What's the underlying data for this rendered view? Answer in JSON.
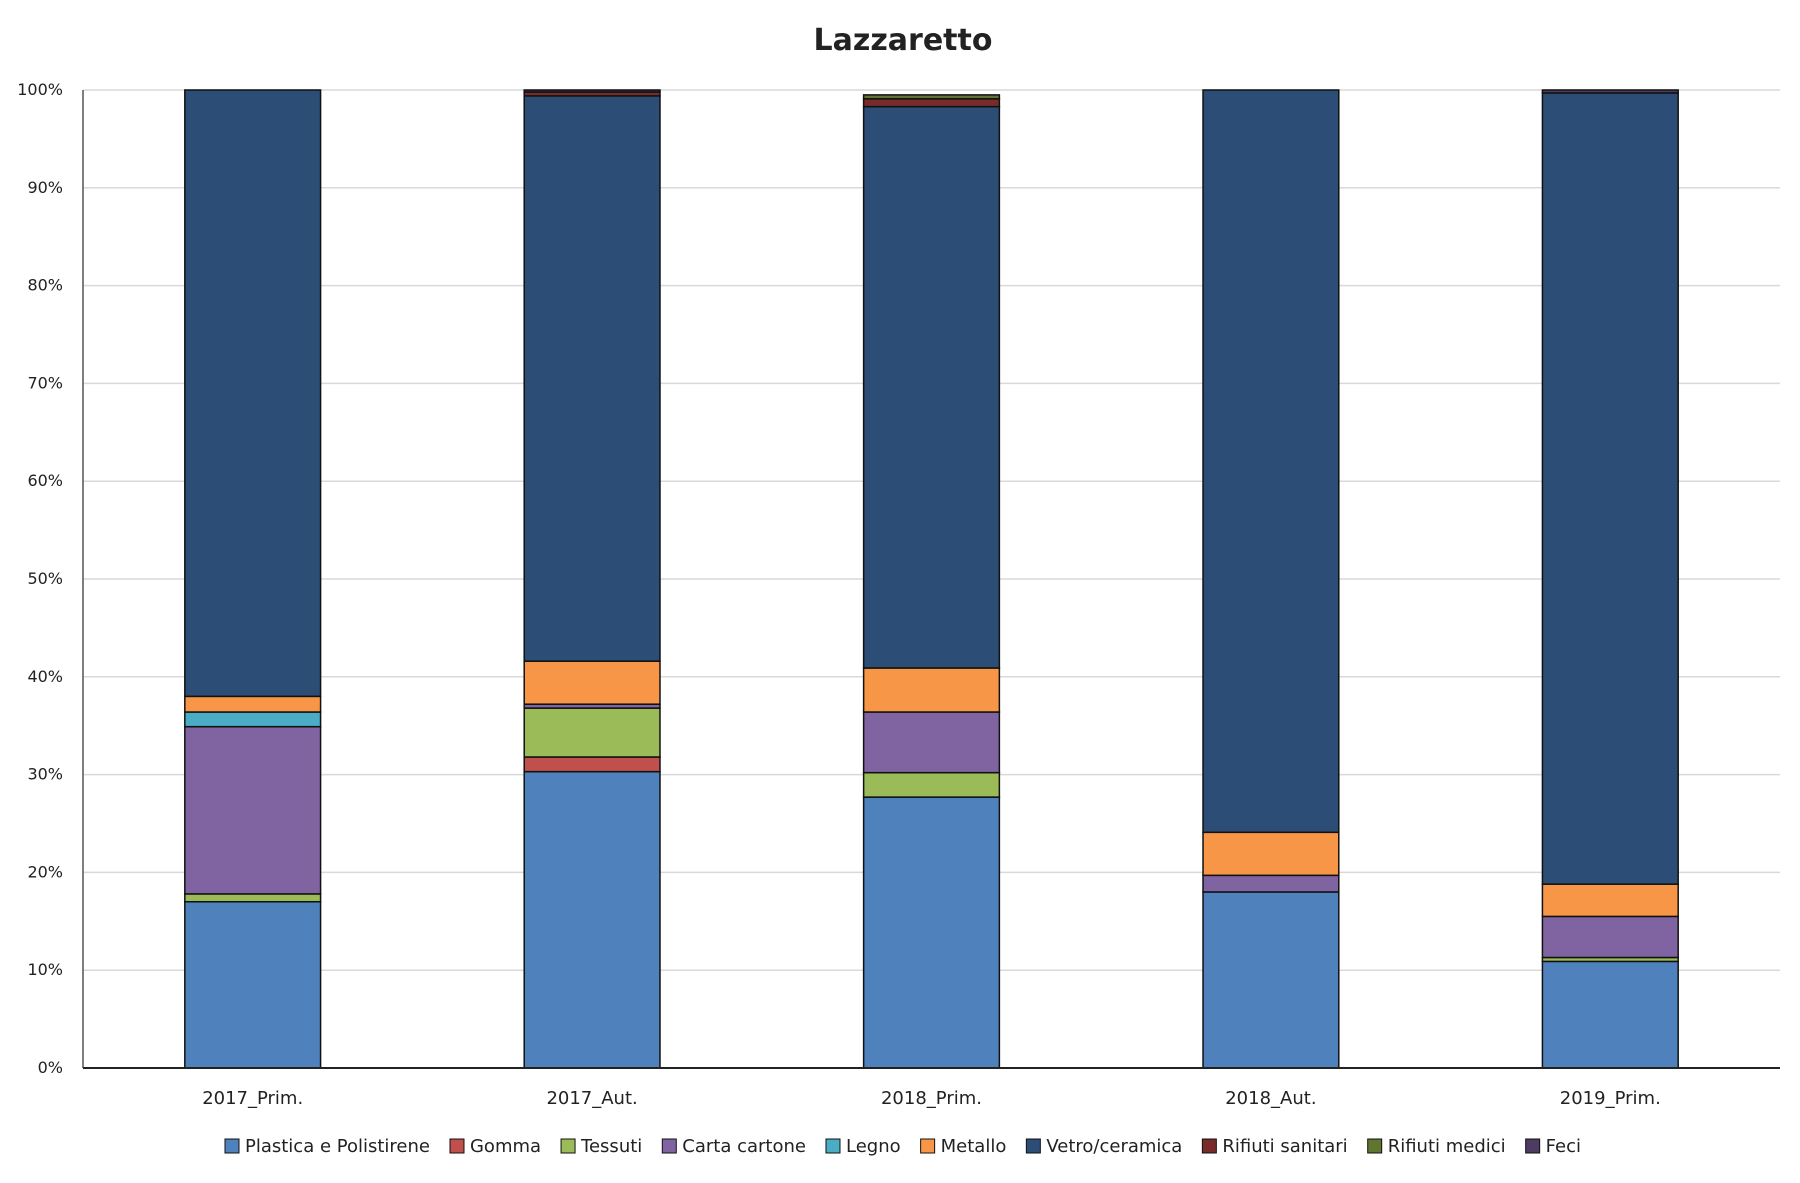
{
  "chart_data": {
    "type": "bar",
    "stacked": true,
    "normalized": true,
    "title": "Lazzaretto",
    "xlabel": "",
    "ylabel": "",
    "ylim": [
      0,
      100
    ],
    "y_ticks": [
      "0%",
      "10%",
      "20%",
      "30%",
      "40%",
      "50%",
      "60%",
      "70%",
      "80%",
      "90%",
      "100%"
    ],
    "grid": true,
    "legend_position": "bottom",
    "categories": [
      "2017_Prim.",
      "2017_Aut.",
      "2018_Prim.",
      "2018_Aut.",
      "2019_Prim."
    ],
    "series": [
      {
        "name": "Plastica e Polistirene",
        "color": "#4F81BD",
        "values": [
          17.0,
          30.3,
          27.7,
          18.0,
          10.9
        ]
      },
      {
        "name": "Gomma",
        "color": "#C0504D",
        "values": [
          0.0,
          1.5,
          0.0,
          0.0,
          0.0
        ]
      },
      {
        "name": "Tessuti",
        "color": "#9BBB59",
        "values": [
          0.8,
          5.0,
          2.5,
          0.0,
          0.4
        ]
      },
      {
        "name": "Carta cartone",
        "color": "#8064A2",
        "values": [
          17.1,
          0.4,
          6.2,
          1.7,
          4.2
        ]
      },
      {
        "name": "Legno",
        "color": "#4BACC6",
        "values": [
          1.5,
          0.0,
          0.0,
          0.0,
          0.0
        ]
      },
      {
        "name": "Metallo",
        "color": "#F79646",
        "values": [
          1.6,
          4.4,
          4.5,
          4.4,
          3.3
        ]
      },
      {
        "name": "Vetro/ceramica",
        "color": "#2C4D75",
        "values": [
          62.0,
          57.8,
          57.4,
          75.9,
          80.9
        ]
      },
      {
        "name": "Rifiuti sanitari",
        "color": "#772C2A",
        "values": [
          0.0,
          0.4,
          0.8,
          0.0,
          0.0
        ]
      },
      {
        "name": "Rifiuti medici",
        "color": "#5F7530",
        "values": [
          0.0,
          0.0,
          0.4,
          0.0,
          0.0
        ]
      },
      {
        "name": "Feci",
        "color": "#4D3B62",
        "values": [
          0.0,
          0.2,
          0.0,
          0.0,
          0.3
        ]
      }
    ]
  }
}
